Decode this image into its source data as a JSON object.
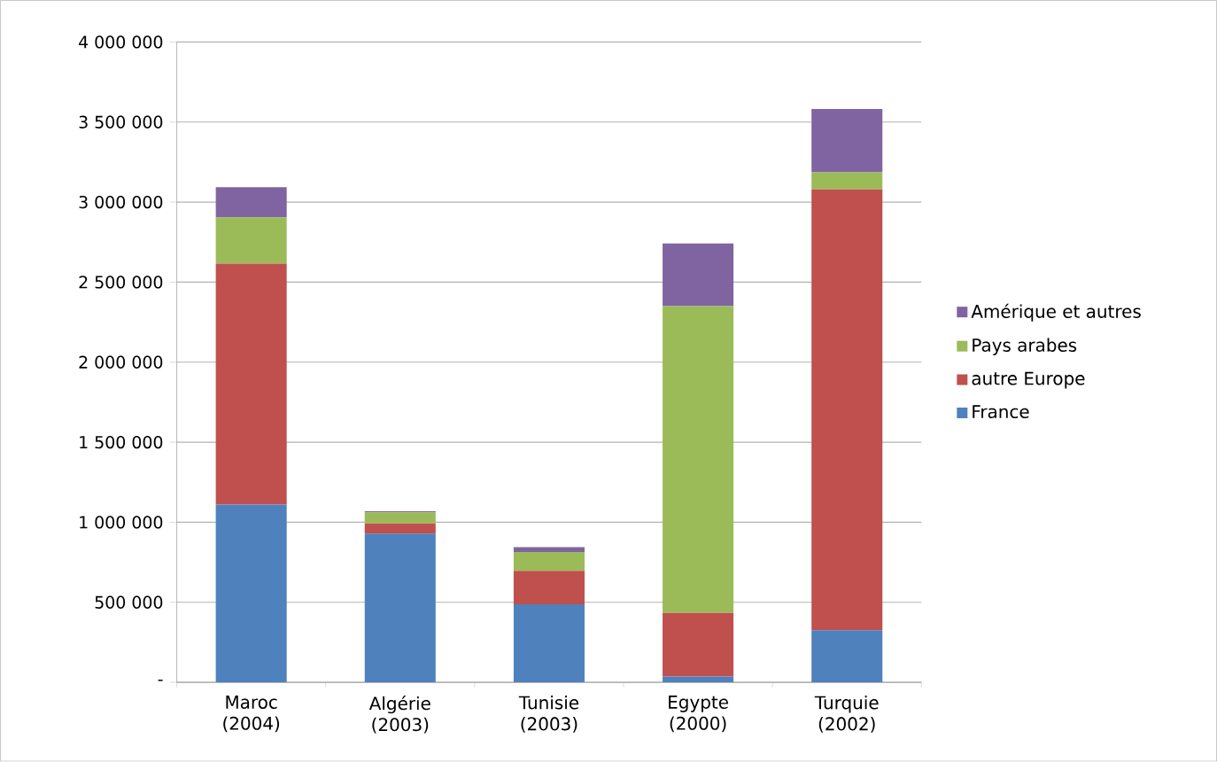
{
  "chart_data": {
    "type": "bar",
    "stacked": true,
    "grid": "y",
    "legend": "right",
    "categories": [
      "Maroc (2004)",
      "Algérie (2003)",
      "Tunisie (2003)",
      "Egypte (2000)",
      "Turquie (2002)"
    ],
    "ylim": [
      0,
      4000000
    ],
    "yticks": [
      {
        "value": 0,
        "label": "-"
      },
      {
        "value": 500000,
        "label": "500 000"
      },
      {
        "value": 1000000,
        "label": "1 000 000"
      },
      {
        "value": 1500000,
        "label": "1 500 000"
      },
      {
        "value": 2000000,
        "label": "2 000 000"
      },
      {
        "value": 2500000,
        "label": "2 500 000"
      },
      {
        "value": 3000000,
        "label": "3 000 000"
      },
      {
        "value": 3500000,
        "label": "3 500 000"
      },
      {
        "value": 4000000,
        "label": "4 000 000"
      }
    ],
    "series": [
      {
        "name": "France",
        "color": "#4f81bd",
        "values": [
          1110000,
          929000,
          488000,
          37000,
          326000
        ]
      },
      {
        "name": "autre Europe",
        "color": "#c0504d",
        "values": [
          1506000,
          63000,
          208000,
          396000,
          2753000
        ]
      },
      {
        "name": "Pays arabes",
        "color": "#9bbb59",
        "values": [
          289000,
          70000,
          118000,
          1917000,
          107000
        ]
      },
      {
        "name": "Amérique et autres",
        "color": "#8064a2",
        "values": [
          188000,
          7000,
          30000,
          392000,
          396000
        ]
      }
    ]
  }
}
